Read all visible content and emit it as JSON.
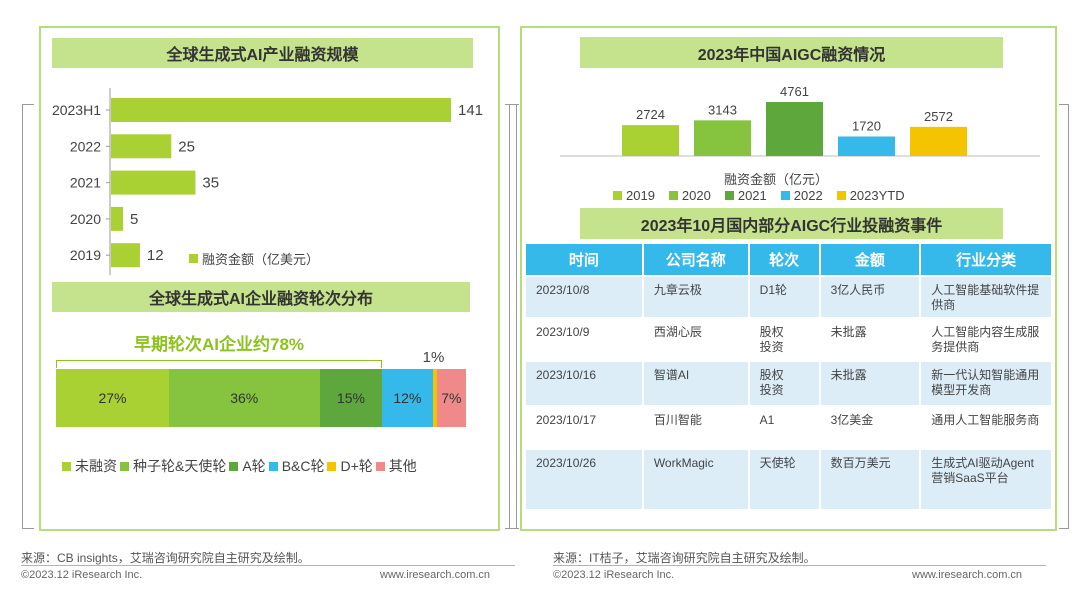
{
  "left": {
    "funding_title": "全球生成式AI产业融资规模",
    "funding_legend": "融资金额（亿美元）",
    "rounds_title": "全球生成式AI企业融资轮次分布",
    "early_label": "早期轮次AI企业约78%"
  },
  "right": {
    "title": "2023年中国AIGC融资情况",
    "xlabel": "融资金额（亿元）",
    "events_title": "2023年10月国内部分AIGC行业投融资事件",
    "table": {
      "headers": [
        "时间",
        "公司名称",
        "轮次",
        "金额",
        "行业分类"
      ],
      "rows": [
        [
          "2023/10/8",
          "九章云极",
          "D1轮",
          "3亿人民币",
          "人工智能基础软件提供商"
        ],
        [
          "2023/10/9",
          "西湖心辰",
          "股权投资",
          "未批露",
          "人工智能内容生成服务提供商"
        ],
        [
          "2023/10/16",
          "智谱AI",
          "股权投资",
          "未批露",
          "新一代认知智能通用模型开发商"
        ],
        [
          "2023/10/17",
          "百川智能",
          "A1",
          "3亿美金",
          "通用人工智能服务商"
        ],
        [
          "2023/10/26",
          "WorkMagic",
          "天使轮",
          "数百万美元",
          "生成式AI驱动Agent营销SaaS平台"
        ]
      ]
    }
  },
  "footer": {
    "left_source": "来源：CB insights，艾瑞咨询研究院自主研究及绘制。",
    "right_source": "来源：IT桔子，艾瑞咨询研究院自主研究及绘制。",
    "copyright": "©2023.12 iResearch Inc.",
    "website": "www.iresearch.com.cn"
  },
  "chart_data": [
    {
      "type": "bar",
      "orientation": "horizontal",
      "title": "全球生成式AI产业融资规模",
      "categories": [
        "2023H1",
        "2022",
        "2021",
        "2020",
        "2019"
      ],
      "series": [
        {
          "name": "融资金额（亿美元）",
          "values": [
            141,
            25,
            35,
            5,
            12
          ],
          "color": "#a9d133"
        }
      ],
      "xlim": [
        0,
        141
      ],
      "legend": "bottom-right",
      "grid": false
    },
    {
      "type": "bar",
      "stacked": true,
      "orientation": "horizontal",
      "title": "全球生成式AI企业融资轮次分布",
      "series": [
        {
          "name": "未融资",
          "value": 27,
          "label": "27%",
          "color": "#a9d133"
        },
        {
          "name": "种子轮&天使轮",
          "value": 36,
          "label": "36%",
          "color": "#86c440"
        },
        {
          "name": "A轮",
          "value": 15,
          "label": "15%",
          "color": "#5ea73c"
        },
        {
          "name": "B&C轮",
          "value": 12,
          "label": "12%",
          "color": "#35b8ea"
        },
        {
          "name": "D+轮",
          "value": 1,
          "label": "1%",
          "color": "#f5c400"
        },
        {
          "name": "其他",
          "value": 7,
          "label": "7%",
          "color": "#f08a8a"
        }
      ],
      "annotation": "早期轮次AI企业约78%",
      "legend": "bottom"
    },
    {
      "type": "bar",
      "title": "2023年中国AIGC融资情况",
      "categories": [
        "2019",
        "2020",
        "2021",
        "2022",
        "2023YTD"
      ],
      "values": [
        2724,
        3143,
        4761,
        1720,
        2572
      ],
      "colors": [
        "#a9d133",
        "#86c440",
        "#5ea73c",
        "#35b8ea",
        "#f5c400"
      ],
      "xlabel": "融资金额（亿元）",
      "ylim": [
        0,
        4761
      ],
      "legend": "bottom",
      "grid": false
    }
  ]
}
